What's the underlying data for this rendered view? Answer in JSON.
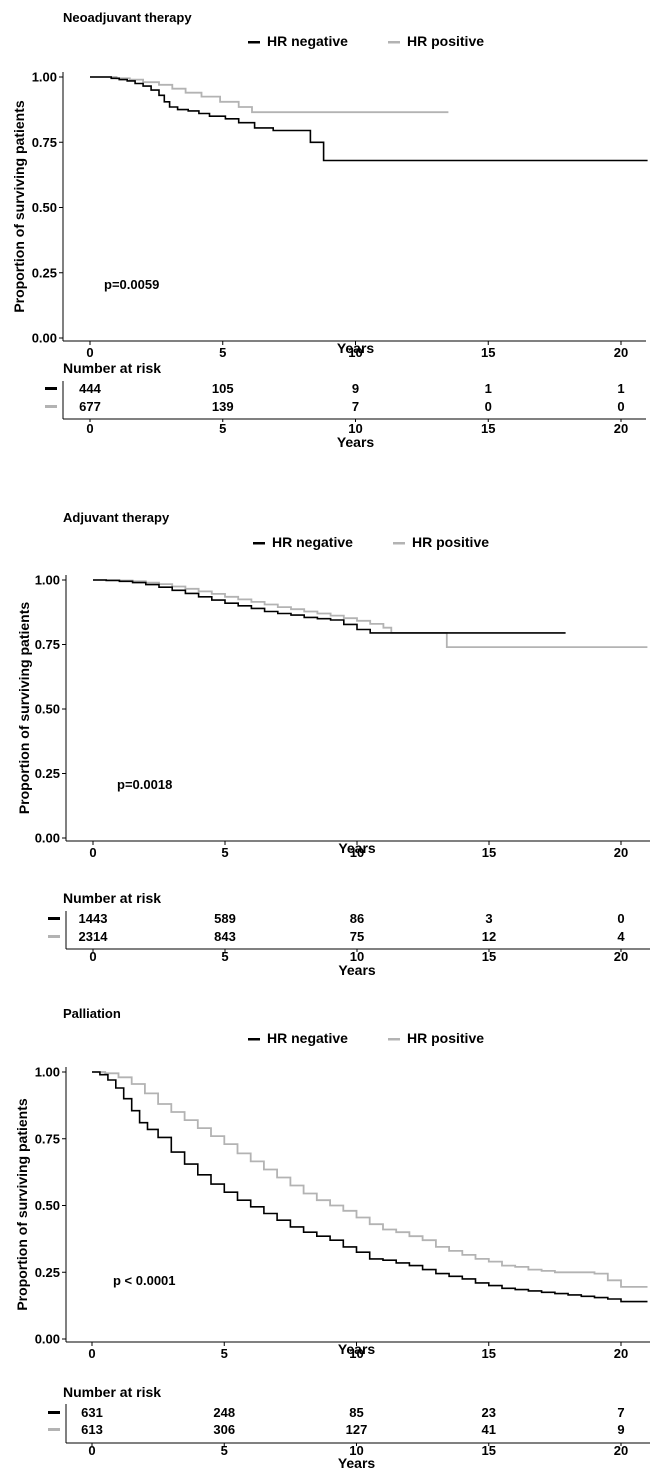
{
  "colors": {
    "HR negative": "#000000",
    "HR positive": "#b3b3b3",
    "axis": "#000000"
  },
  "risk_header": "Number at risk",
  "chart_data": [
    {
      "type": "line",
      "title": "Neoadjuvant therapy",
      "xlabel": "Years",
      "ylabel": "Proportion of surviving patients",
      "xlim": [
        0,
        21
      ],
      "ylim": [
        0,
        1
      ],
      "xticks": [
        0,
        5,
        10,
        15,
        20
      ],
      "yticks": [
        "0.00",
        "0.25",
        "0.50",
        "0.75",
        "1.00"
      ],
      "grid": false,
      "legend_position": "top",
      "annotation": "p=0.0059",
      "series": [
        {
          "name": "HR negative",
          "x": [
            0,
            0.6,
            0.8,
            1.1,
            1.4,
            1.7,
            2.0,
            2.3,
            2.6,
            2.8,
            3.0,
            3.3,
            3.7,
            4.1,
            4.5,
            5.1,
            5.6,
            6.2,
            6.9,
            7.6,
            8.2,
            8.3,
            8.7,
            8.8,
            21
          ],
          "y": [
            1,
            1,
            0.995,
            0.99,
            0.985,
            0.975,
            0.965,
            0.95,
            0.93,
            0.905,
            0.885,
            0.875,
            0.87,
            0.86,
            0.85,
            0.84,
            0.825,
            0.805,
            0.795,
            0.795,
            0.795,
            0.75,
            0.75,
            0.68,
            0.68
          ]
        },
        {
          "name": "HR positive",
          "x": [
            0,
            0.6,
            1.0,
            1.5,
            2.0,
            2.6,
            3.1,
            3.6,
            4.2,
            4.9,
            5.6,
            6.1,
            7.0,
            13.5
          ],
          "y": [
            1,
            1,
            0.995,
            0.99,
            0.98,
            0.97,
            0.955,
            0.94,
            0.925,
            0.905,
            0.885,
            0.865,
            0.865,
            0.865
          ]
        }
      ],
      "risk_table": {
        "xticks": [
          0,
          5,
          10,
          15,
          20
        ],
        "xlabel": "Years",
        "rows": [
          {
            "name": "HR negative",
            "values": [
              "444",
              "105",
              "9",
              "1",
              "1"
            ]
          },
          {
            "name": "HR positive",
            "values": [
              "677",
              "139",
              "7",
              "0",
              "0"
            ]
          }
        ]
      }
    },
    {
      "type": "line",
      "title": "Adjuvant therapy",
      "xlabel": "Years",
      "ylabel": "Proportion of surviving patients",
      "xlim": [
        0,
        21
      ],
      "ylim": [
        0,
        1
      ],
      "xticks": [
        0,
        5,
        10,
        15,
        20
      ],
      "yticks": [
        "0.00",
        "0.25",
        "0.50",
        "0.75",
        "1.00"
      ],
      "grid": false,
      "legend_position": "top",
      "annotation": "p=0.0018",
      "series": [
        {
          "name": "HR negative",
          "x": [
            0,
            0.5,
            1.0,
            1.5,
            2.0,
            2.5,
            3.0,
            3.5,
            4.0,
            4.5,
            5.0,
            5.5,
            6.0,
            6.5,
            7.0,
            7.5,
            8.0,
            8.5,
            9.0,
            9.5,
            10.0,
            10.5,
            17.9
          ],
          "y": [
            1,
            0.998,
            0.995,
            0.99,
            0.982,
            0.972,
            0.96,
            0.948,
            0.935,
            0.922,
            0.91,
            0.9,
            0.89,
            0.878,
            0.87,
            0.864,
            0.855,
            0.85,
            0.845,
            0.828,
            0.808,
            0.795,
            0.795
          ]
        },
        {
          "name": "HR positive",
          "x": [
            0,
            0.5,
            1.0,
            1.5,
            2.0,
            2.5,
            3.0,
            3.5,
            4.0,
            4.5,
            5.0,
            5.5,
            6.0,
            6.5,
            7.0,
            7.5,
            8.0,
            8.5,
            9.0,
            9.5,
            10.0,
            10.5,
            11.0,
            11.3,
            13.4,
            13.4,
            21
          ],
          "y": [
            1,
            1,
            0.998,
            0.995,
            0.99,
            0.984,
            0.975,
            0.966,
            0.956,
            0.946,
            0.935,
            0.925,
            0.915,
            0.905,
            0.895,
            0.887,
            0.878,
            0.87,
            0.862,
            0.852,
            0.842,
            0.83,
            0.815,
            0.795,
            0.795,
            0.74,
            0.74
          ]
        }
      ],
      "risk_table": {
        "xticks": [
          0,
          5,
          10,
          15,
          20
        ],
        "xlabel": "Years",
        "rows": [
          {
            "name": "HR negative",
            "values": [
              "1443",
              "589",
              "86",
              "3",
              "0"
            ]
          },
          {
            "name": "HR positive",
            "values": [
              "2314",
              "843",
              "75",
              "12",
              "4"
            ]
          }
        ]
      }
    },
    {
      "type": "line",
      "title": "Palliation",
      "xlabel": "Years",
      "ylabel": "Proportion of surviving patients",
      "xlim": [
        0,
        21
      ],
      "ylim": [
        0,
        1
      ],
      "xticks": [
        0,
        5,
        10,
        15,
        20
      ],
      "yticks": [
        "0.00",
        "0.25",
        "0.50",
        "0.75",
        "1.00"
      ],
      "grid": false,
      "legend_position": "top",
      "annotation": "p < 0.0001",
      "series": [
        {
          "name": "HR negative",
          "x": [
            0,
            0.3,
            0.6,
            0.9,
            1.2,
            1.5,
            1.8,
            2.1,
            2.5,
            3.0,
            3.5,
            4.0,
            4.5,
            5.0,
            5.5,
            6.0,
            6.5,
            7.0,
            7.5,
            8.0,
            8.5,
            9.0,
            9.5,
            10.0,
            10.5,
            11.0,
            11.5,
            12.0,
            12.5,
            13.0,
            13.5,
            14.0,
            14.5,
            15.0,
            15.5,
            16.0,
            16.5,
            17.0,
            17.5,
            18.0,
            18.5,
            19.0,
            19.5,
            20.0,
            21
          ],
          "y": [
            1,
            0.99,
            0.97,
            0.94,
            0.9,
            0.855,
            0.81,
            0.785,
            0.755,
            0.7,
            0.655,
            0.615,
            0.58,
            0.55,
            0.52,
            0.495,
            0.47,
            0.445,
            0.42,
            0.4,
            0.385,
            0.37,
            0.345,
            0.325,
            0.3,
            0.295,
            0.285,
            0.275,
            0.26,
            0.245,
            0.235,
            0.225,
            0.21,
            0.2,
            0.19,
            0.185,
            0.18,
            0.175,
            0.17,
            0.165,
            0.16,
            0.155,
            0.15,
            0.14,
            0.14
          ]
        },
        {
          "name": "HR positive",
          "x": [
            0,
            0.5,
            1.0,
            1.5,
            2.0,
            2.5,
            3.0,
            3.5,
            4.0,
            4.5,
            5.0,
            5.5,
            6.0,
            6.5,
            7.0,
            7.5,
            8.0,
            8.5,
            9.0,
            9.5,
            10.0,
            10.5,
            11.0,
            11.5,
            12.0,
            12.5,
            13.0,
            13.5,
            14.0,
            14.5,
            15.0,
            15.5,
            16.0,
            16.5,
            17.0,
            17.5,
            18.0,
            18.5,
            19.0,
            19.5,
            20.0,
            21
          ],
          "y": [
            1,
            0.995,
            0.98,
            0.955,
            0.92,
            0.88,
            0.85,
            0.82,
            0.79,
            0.76,
            0.73,
            0.695,
            0.665,
            0.635,
            0.605,
            0.575,
            0.545,
            0.52,
            0.5,
            0.48,
            0.455,
            0.43,
            0.41,
            0.4,
            0.385,
            0.37,
            0.345,
            0.33,
            0.315,
            0.3,
            0.29,
            0.275,
            0.27,
            0.26,
            0.255,
            0.25,
            0.25,
            0.25,
            0.245,
            0.22,
            0.195,
            0.195
          ]
        }
      ],
      "risk_table": {
        "xticks": [
          0,
          5,
          10,
          15,
          20
        ],
        "xlabel": "Years",
        "rows": [
          {
            "name": "HR negative",
            "values": [
              "631",
              "248",
              "85",
              "23",
              "7"
            ]
          },
          {
            "name": "HR positive",
            "values": [
              "613",
              "306",
              "127",
              "41",
              "9"
            ]
          }
        ]
      }
    }
  ]
}
